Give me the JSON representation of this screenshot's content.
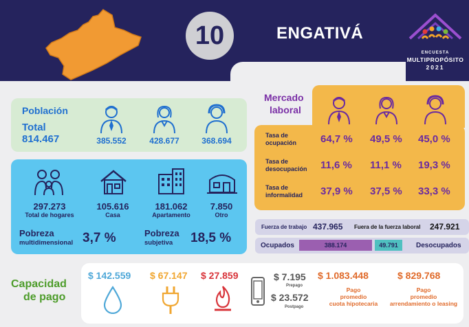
{
  "header": {
    "number": "10",
    "locality": "ENGATIVÁ"
  },
  "logo": {
    "line1": "ENCUESTA",
    "line2": "MULTIPROPÓSITO",
    "line3": "2021",
    "colors": [
      "#e23b3b",
      "#f3a52a",
      "#3ab0e2",
      "#7ab83a",
      "#9b4fd0"
    ]
  },
  "poblacion": {
    "title": "Población",
    "total_label": "Total",
    "total": "814.467",
    "men": "385.552",
    "women": "428.677",
    "other": "368.694"
  },
  "hogares": {
    "total": "297.273",
    "total_label": "Total de hogares",
    "casa": "105.616",
    "casa_label": "Casa",
    "apto": "181.062",
    "apto_label": "Apartamento",
    "otro": "7.850",
    "otro_label": "Otro",
    "pobreza_m_title": "Pobreza",
    "pobreza_m_sub": "multidimensional",
    "pobreza_m": "3,7 %",
    "pobreza_s_title": "Pobreza",
    "pobreza_s_sub": "subjetiva",
    "pobreza_s": "18,5 %"
  },
  "mercado": {
    "title1": "Mercado",
    "title2": "laboral",
    "rows": [
      {
        "l1": "Tasa de",
        "l2": "ocupación",
        "v": [
          "64,7 %",
          "49,5 %",
          "45,0 %"
        ]
      },
      {
        "l1": "Tasa de",
        "l2": "desocupación",
        "v": [
          "11,6 %",
          "11,1 %",
          "19,3 %"
        ]
      },
      {
        "l1": "Tasa de",
        "l2": "informalidad",
        "v": [
          "37,9 %",
          "37,5 %",
          "33,3 %"
        ]
      }
    ]
  },
  "fuerza": {
    "trabajo_label": "Fuerza de trabajo",
    "trabajo": "437.965",
    "fuera_label": "Fuera de la fuerza laboral",
    "fuera": "247.921",
    "ocupados_label": "Ocupados",
    "ocupados": "388.174",
    "desocupados_label": "Desocupados",
    "desocupados": "49.791",
    "ocupados_share": 0.886
  },
  "capacidad": {
    "title1": "Capacidad",
    "title2": "de pago",
    "agua": "$ 142.559",
    "energia": "$ 67.147",
    "gas": "$ 27.859",
    "prepago": "$ 7.195",
    "prepago_label": "Prepago",
    "postpago": "$ 23.572",
    "postpago_label": "Postpago",
    "hipoteca": "$ 1.083.448",
    "hipoteca_l1": "Pago",
    "hipoteca_l2": "promedio",
    "hipoteca_l3": "cuota hipotecaria",
    "arriendo": "$ 829.768",
    "arriendo_l1": "Pago",
    "arriendo_l2": "promedio",
    "arriendo_l3": "arrendamiento o leasing"
  }
}
